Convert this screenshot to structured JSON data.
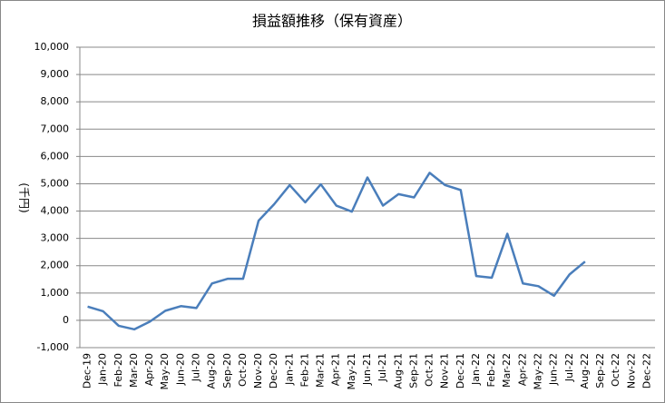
{
  "chart_data": {
    "type": "line",
    "title": "損益額推移（保有資産）",
    "y_label": "(千円)",
    "categories": [
      "Dec-19",
      "Jan-20",
      "Feb-20",
      "Mar-20",
      "Apr-20",
      "May-20",
      "Jun-20",
      "Jul-20",
      "Aug-20",
      "Sep-20",
      "Oct-20",
      "Nov-20",
      "Dec-20",
      "Jan-21",
      "Feb-21",
      "Mar-21",
      "Apr-21",
      "May-21",
      "Jun-21",
      "Jul-21",
      "Aug-21",
      "Sep-21",
      "Oct-21",
      "Nov-21",
      "Dec-21",
      "Jan-22",
      "Feb-22",
      "Mar-22",
      "Apr-22",
      "May-22",
      "Jun-22",
      "Jul-22",
      "Aug-22",
      "Sep-22",
      "Oct-22",
      "Nov-22",
      "Dec-22"
    ],
    "series": [
      {
        "color": "#4a7ebb",
        "values": [
          500,
          330,
          -200,
          -330,
          -50,
          350,
          520,
          450,
          1350,
          1520,
          1520,
          3650,
          4250,
          4950,
          4320,
          4980,
          4200,
          3980,
          5230,
          4200,
          4620,
          4500,
          5400,
          4950,
          4770,
          1620,
          1560,
          3170,
          1350,
          1250,
          900,
          1680,
          2150,
          null,
          null,
          null,
          null
        ]
      }
    ],
    "ylim": [
      -1000,
      10000
    ],
    "yticks": [
      {
        "value": -1000,
        "label": "-1,000"
      },
      0,
      {
        "value": 1000,
        "label": "1,000"
      },
      {
        "value": 2000,
        "label": "2,000"
      },
      {
        "value": 3000,
        "label": "3,000"
      },
      {
        "value": 4000,
        "label": "4,000"
      },
      {
        "value": 5000,
        "label": "5,000"
      },
      {
        "value": 6000,
        "label": "6,000"
      },
      {
        "value": 7000,
        "label": "7,000"
      },
      {
        "value": 8000,
        "label": "8,000"
      },
      {
        "value": 9000,
        "label": "9,000"
      },
      {
        "value": 10000,
        "label": "10,000"
      }
    ],
    "grid": true
  }
}
